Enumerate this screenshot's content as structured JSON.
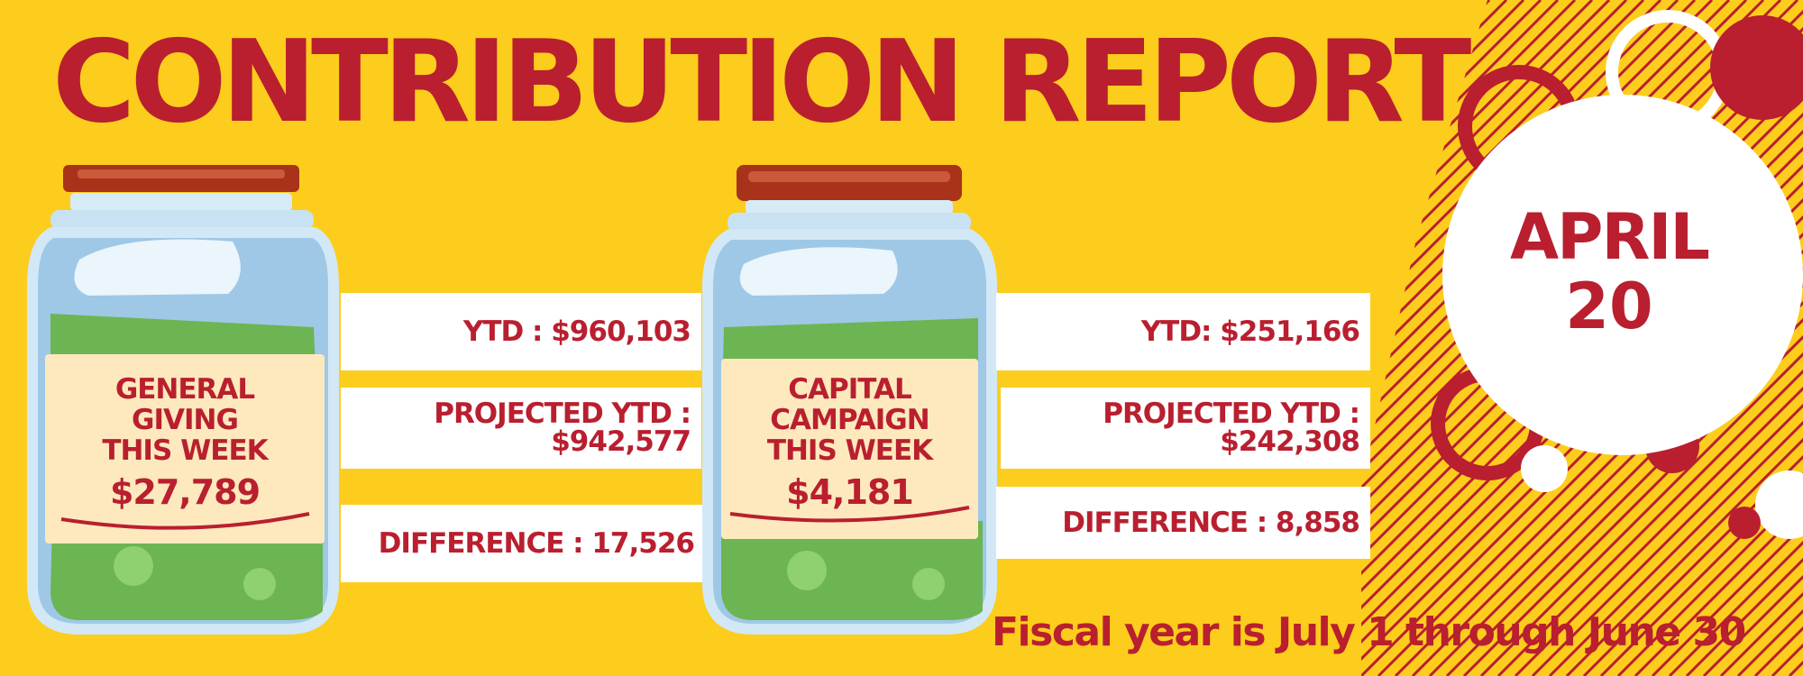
{
  "title": "CONTRIBUTION REPORT",
  "date": {
    "month": "APRIL",
    "day": "20"
  },
  "general": {
    "label_lines": [
      "GENERAL",
      "GIVING",
      "THIS WEEK"
    ],
    "amount": "$27,789",
    "ytd": "YTD : $960,103",
    "projected_label": "PROJECTED YTD :",
    "projected_value": "$942,577",
    "difference": "DIFFERENCE : 17,526"
  },
  "capital": {
    "label_lines": [
      "CAPITAL",
      "CAMPAIGN",
      "THIS WEEK"
    ],
    "amount": "$4,181",
    "ytd": "YTD: $251,166",
    "projected_label": "PROJECTED YTD :",
    "projected_value": "$242,308",
    "difference": "DIFFERENCE : 8,858"
  },
  "footer": "Fiscal year is July 1 through June 30",
  "colors": {
    "background": "#fccd1c",
    "accent": "#b91f2f",
    "panel": "#ffffff"
  }
}
